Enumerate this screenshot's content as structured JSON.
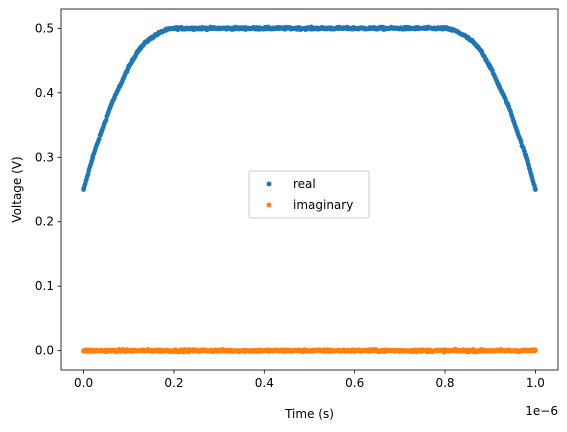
{
  "chart_data": {
    "type": "scatter",
    "xlabel": "Time (s)",
    "ylabel": "Voltage (V)",
    "x_scale_label": "1e−6",
    "xlim": [
      -0.05,
      1.05
    ],
    "ylim": [
      -0.03,
      0.53
    ],
    "x_ticks": [
      {
        "value": 0.0,
        "label": "0.0"
      },
      {
        "value": 0.2,
        "label": "0.2"
      },
      {
        "value": 0.4,
        "label": "0.4"
      },
      {
        "value": 0.6,
        "label": "0.6"
      },
      {
        "value": 0.8,
        "label": "0.8"
      },
      {
        "value": 1.0,
        "label": "1.0"
      }
    ],
    "y_ticks": [
      {
        "value": 0.0,
        "label": "0.0"
      },
      {
        "value": 0.1,
        "label": "0.1"
      },
      {
        "value": 0.2,
        "label": "0.2"
      },
      {
        "value": 0.3,
        "label": "0.3"
      },
      {
        "value": 0.4,
        "label": "0.4"
      },
      {
        "value": 0.5,
        "label": "0.5"
      }
    ],
    "grid": false,
    "legend_position": "center",
    "series": [
      {
        "name": "real",
        "color": "#1f77b4",
        "x": [
          0.0,
          0.02,
          0.04,
          0.06,
          0.08,
          0.1,
          0.12,
          0.14,
          0.16,
          0.18,
          0.2,
          0.22,
          0.24,
          0.3,
          0.4,
          0.5,
          0.6,
          0.7,
          0.76,
          0.78,
          0.8,
          0.82,
          0.84,
          0.86,
          0.88,
          0.9,
          0.92,
          0.94,
          0.96,
          0.98,
          1.0
        ],
        "y": [
          0.25,
          0.3,
          0.34,
          0.38,
          0.41,
          0.44,
          0.465,
          0.48,
          0.49,
          0.497,
          0.5,
          0.5,
          0.5,
          0.5,
          0.5,
          0.5,
          0.5,
          0.5,
          0.5,
          0.5,
          0.5,
          0.497,
          0.49,
          0.48,
          0.465,
          0.44,
          0.41,
          0.38,
          0.34,
          0.3,
          0.25
        ]
      },
      {
        "name": "imaginary",
        "color": "#ff7f0e",
        "x": [
          0.0,
          0.1,
          0.2,
          0.3,
          0.4,
          0.5,
          0.6,
          0.7,
          0.8,
          0.9,
          1.0
        ],
        "y": [
          0.0,
          0.0,
          0.0,
          0.0,
          0.0,
          0.0,
          0.0,
          0.0,
          0.0,
          0.0,
          0.0
        ]
      }
    ]
  }
}
